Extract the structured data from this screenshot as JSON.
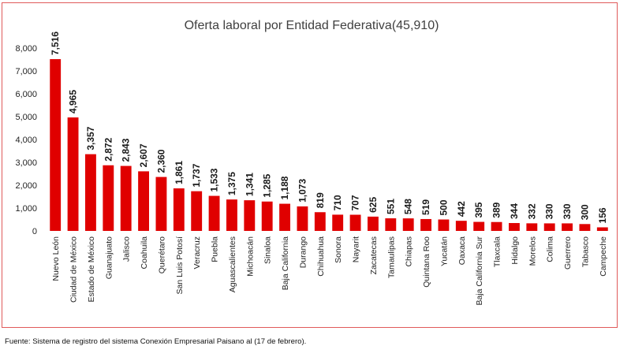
{
  "chart_data": {
    "type": "bar",
    "title": "Oferta laboral por Entidad Federativa(45,910)",
    "xlabel": "",
    "ylabel": "",
    "ylim": [
      0,
      8000
    ],
    "yticks": [
      0,
      1000,
      2000,
      3000,
      4000,
      5000,
      6000,
      7000,
      8000
    ],
    "ytick_labels": [
      "0",
      "1,000",
      "2,000",
      "3,000",
      "4,000",
      "5,000",
      "6,000",
      "7,000",
      "8,000"
    ],
    "grid": false,
    "legend": "none",
    "bar_color": "#e00000",
    "categories": [
      "Nuevo León",
      "Ciudad de México",
      "Estado de México",
      "Guanajuato",
      "Jalisco",
      "Coahuila",
      "Querétaro",
      "San Luis Potosí",
      "Veracruz",
      "Puebla",
      "Aguascalientes",
      "Michoacán",
      "Sinaloa",
      "Baja California",
      "Durango",
      "Chihuahua",
      "Sonora",
      "Nayarit",
      "Zacatecas",
      "Tamaulipas",
      "Chiapas",
      "Quintana Roo",
      "Yucatán",
      "Oaxaca",
      "Baja California Sur",
      "Tlaxcala",
      "Hidalgo",
      "Morelos",
      "Colima",
      "Guerrero",
      "Tabasco",
      "Campeche"
    ],
    "values": [
      7516,
      4965,
      3357,
      2872,
      2843,
      2607,
      2360,
      1861,
      1737,
      1533,
      1375,
      1341,
      1285,
      1188,
      1073,
      819,
      710,
      707,
      625,
      551,
      548,
      519,
      500,
      442,
      395,
      389,
      344,
      332,
      330,
      330,
      300,
      156
    ],
    "value_labels": [
      "7,516",
      "4,965",
      "3,357",
      "2,872",
      "2,843",
      "2,607",
      "2,360",
      "1,861",
      "1,737",
      "1,533",
      "1,375",
      "1,341",
      "1,285",
      "1,188",
      "1,073",
      "819",
      "710",
      "707",
      "625",
      "551",
      "548",
      "519",
      "500",
      "442",
      "395",
      "389",
      "344",
      "332",
      "330",
      "330",
      "300",
      "156"
    ]
  },
  "source_note": "Fuente: Sistema de registro del sistema Conexión Empresarial Paisano al (17 de febrero)."
}
